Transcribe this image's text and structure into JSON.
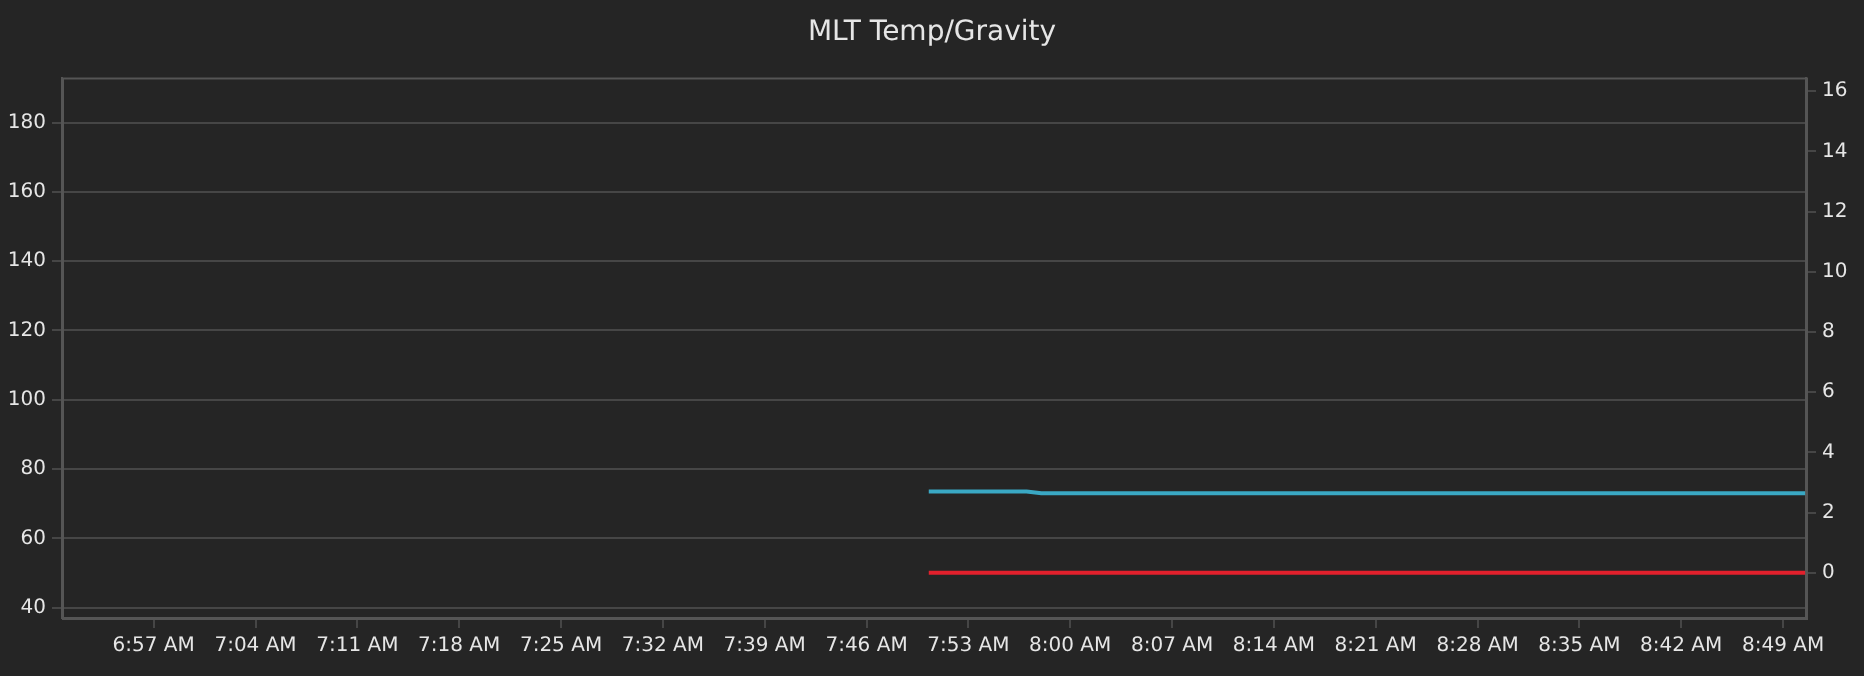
{
  "chart_data": {
    "type": "line",
    "title": "MLT Temp/Gravity",
    "x": [
      7.838,
      7.9,
      7.95,
      7.967,
      8.1,
      8.25,
      8.4,
      8.55,
      8.7,
      8.842
    ],
    "series": [
      {
        "color": "#3aa8c4",
        "values": [
          73.5,
          73.5,
          73.5,
          73,
          73,
          73,
          73,
          73,
          73,
          73
        ]
      },
      {
        "color": "#e2202c",
        "axis": "y2",
        "values": [
          0,
          0,
          0,
          0,
          0,
          0,
          0,
          0,
          0,
          0
        ]
      }
    ],
    "xlim": [
      6.845,
      8.843
    ],
    "xticks": [
      {
        "value": 6.95,
        "label": "6:57 AM"
      },
      {
        "value": 7.0667,
        "label": "7:04 AM"
      },
      {
        "value": 7.1833,
        "label": "7:11 AM"
      },
      {
        "value": 7.3,
        "label": "7:18 AM"
      },
      {
        "value": 7.4167,
        "label": "7:25 AM"
      },
      {
        "value": 7.5333,
        "label": "7:32 AM"
      },
      {
        "value": 7.65,
        "label": "7:39 AM"
      },
      {
        "value": 7.7667,
        "label": "7:46 AM"
      },
      {
        "value": 7.8833,
        "label": "7:53 AM"
      },
      {
        "value": 8.0,
        "label": "8:00 AM"
      },
      {
        "value": 8.1167,
        "label": "8:07 AM"
      },
      {
        "value": 8.2333,
        "label": "8:14 AM"
      },
      {
        "value": 8.35,
        "label": "8:21 AM"
      },
      {
        "value": 8.4667,
        "label": "8:28 AM"
      },
      {
        "value": 8.5833,
        "label": "8:35 AM"
      },
      {
        "value": 8.7,
        "label": "8:42 AM"
      },
      {
        "value": 8.8167,
        "label": "8:49 AM"
      }
    ],
    "ylim": [
      37,
      193
    ],
    "yticks": [
      40,
      60,
      80,
      100,
      120,
      140,
      160,
      180
    ],
    "y2lim": [
      -1.5,
      16.45
    ],
    "y2ticks": [
      0,
      2,
      4,
      6,
      8,
      10,
      12,
      14,
      16
    ],
    "grid": "y",
    "legend": false,
    "marker": "none",
    "line_style": "solid"
  }
}
